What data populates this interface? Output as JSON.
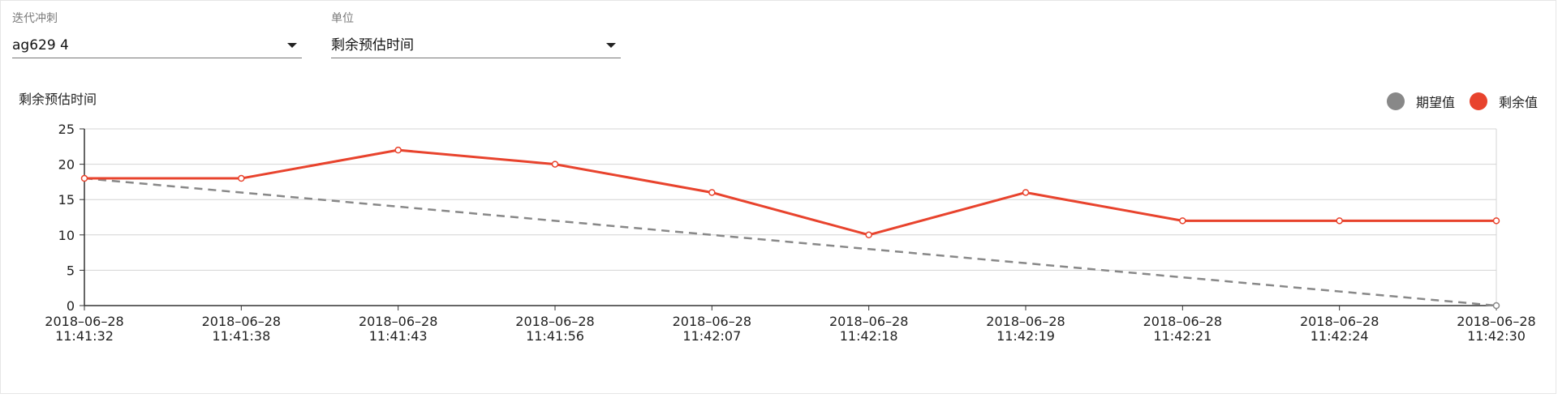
{
  "filters": {
    "sprint": {
      "label": "迭代冲刺",
      "value": "ag629 4"
    },
    "unit": {
      "label": "单位",
      "value": "剩余预估时间"
    }
  },
  "chart_data": {
    "type": "line",
    "title": "剩余预估时间",
    "xlabel": "",
    "ylabel": "",
    "x": [
      "2018–06–28 11:41:32",
      "2018–06–28 11:41:38",
      "2018–06–28 11:41:43",
      "2018–06–28 11:41:56",
      "2018–06–28 11:42:07",
      "2018–06–28 11:42:18",
      "2018–06–28 11:42:19",
      "2018–06–28 11:42:21",
      "2018–06–28 11:42:24",
      "2018–06–28 11:42:30"
    ],
    "x_tick_lines": [
      [
        "2018–06–28",
        "11:41:32"
      ],
      [
        "2018–06–28",
        "11:41:38"
      ],
      [
        "2018–06–28",
        "11:41:43"
      ],
      [
        "2018–06–28",
        "11:41:56"
      ],
      [
        "2018–06–28",
        "11:42:07"
      ],
      [
        "2018–06–28",
        "11:42:18"
      ],
      [
        "2018–06–28",
        "11:42:19"
      ],
      [
        "2018–06–28",
        "11:42:21"
      ],
      [
        "2018–06–28",
        "11:42:24"
      ],
      [
        "2018–06–28",
        "11:42:30"
      ]
    ],
    "ylim": [
      0,
      25
    ],
    "yticks": [
      0,
      5,
      10,
      15,
      20,
      25
    ],
    "grid": true,
    "legend_position": "top-right",
    "series": [
      {
        "name": "期望值",
        "color": "#888888",
        "style": "dashed",
        "values": [
          18,
          16,
          14,
          12,
          10,
          8,
          6,
          4,
          2,
          0
        ]
      },
      {
        "name": "剩余值",
        "color": "#e8432d",
        "style": "solid",
        "markers": true,
        "values": [
          18,
          18,
          22,
          20,
          16,
          10,
          16,
          12,
          12,
          12
        ]
      }
    ]
  }
}
